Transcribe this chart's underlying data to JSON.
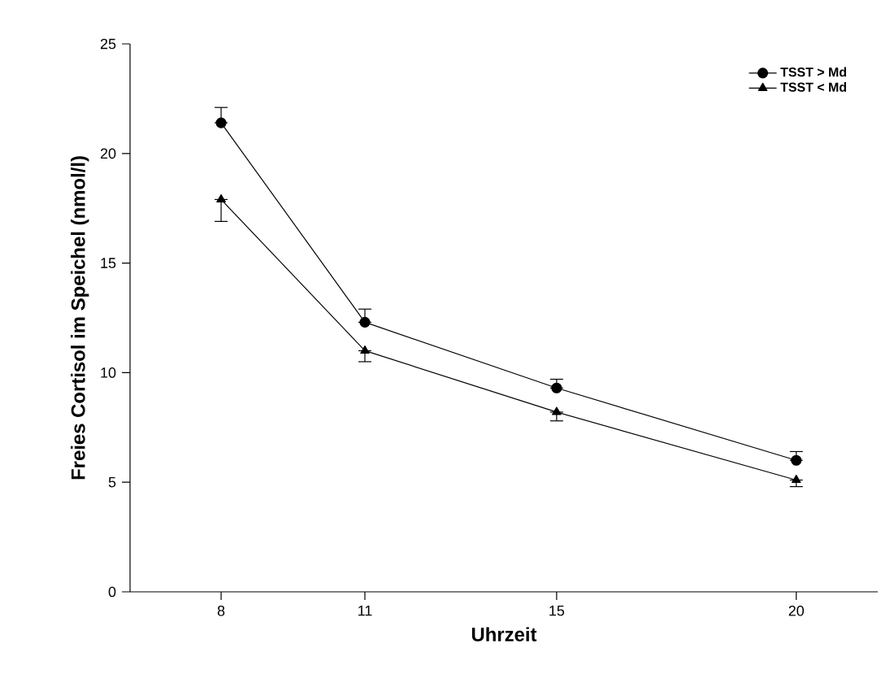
{
  "chart_data": {
    "type": "line",
    "xlabel": "Uhrzeit",
    "ylabel": "Freies Cortisol im Speichel (nmol/l)",
    "x": [
      8,
      11,
      15,
      20
    ],
    "xlim": [
      6.1,
      21.7
    ],
    "xticks": [
      8,
      11,
      15,
      20
    ],
    "ylim": [
      0,
      25
    ],
    "yticks": [
      0,
      5,
      10,
      15,
      20,
      25
    ],
    "legend": "top right",
    "grid": false,
    "line_style": "solid",
    "series": [
      {
        "name": "TSST > Md",
        "color": "#000000",
        "marker": "circle",
        "values": [
          21.4,
          12.3,
          9.3,
          6.0
        ],
        "errors": [
          [
            21.4,
            22.1
          ],
          [
            12.3,
            12.9
          ],
          [
            9.3,
            9.7
          ],
          [
            6.0,
            6.4
          ]
        ]
      },
      {
        "name": "TSST < Md",
        "color": "#000000",
        "marker": "triangle",
        "values": [
          17.9,
          11.0,
          8.2,
          5.1
        ],
        "errors": [
          [
            16.9,
            17.9
          ],
          [
            10.5,
            11.0
          ],
          [
            7.8,
            8.2
          ],
          [
            4.8,
            5.1
          ]
        ]
      }
    ]
  }
}
